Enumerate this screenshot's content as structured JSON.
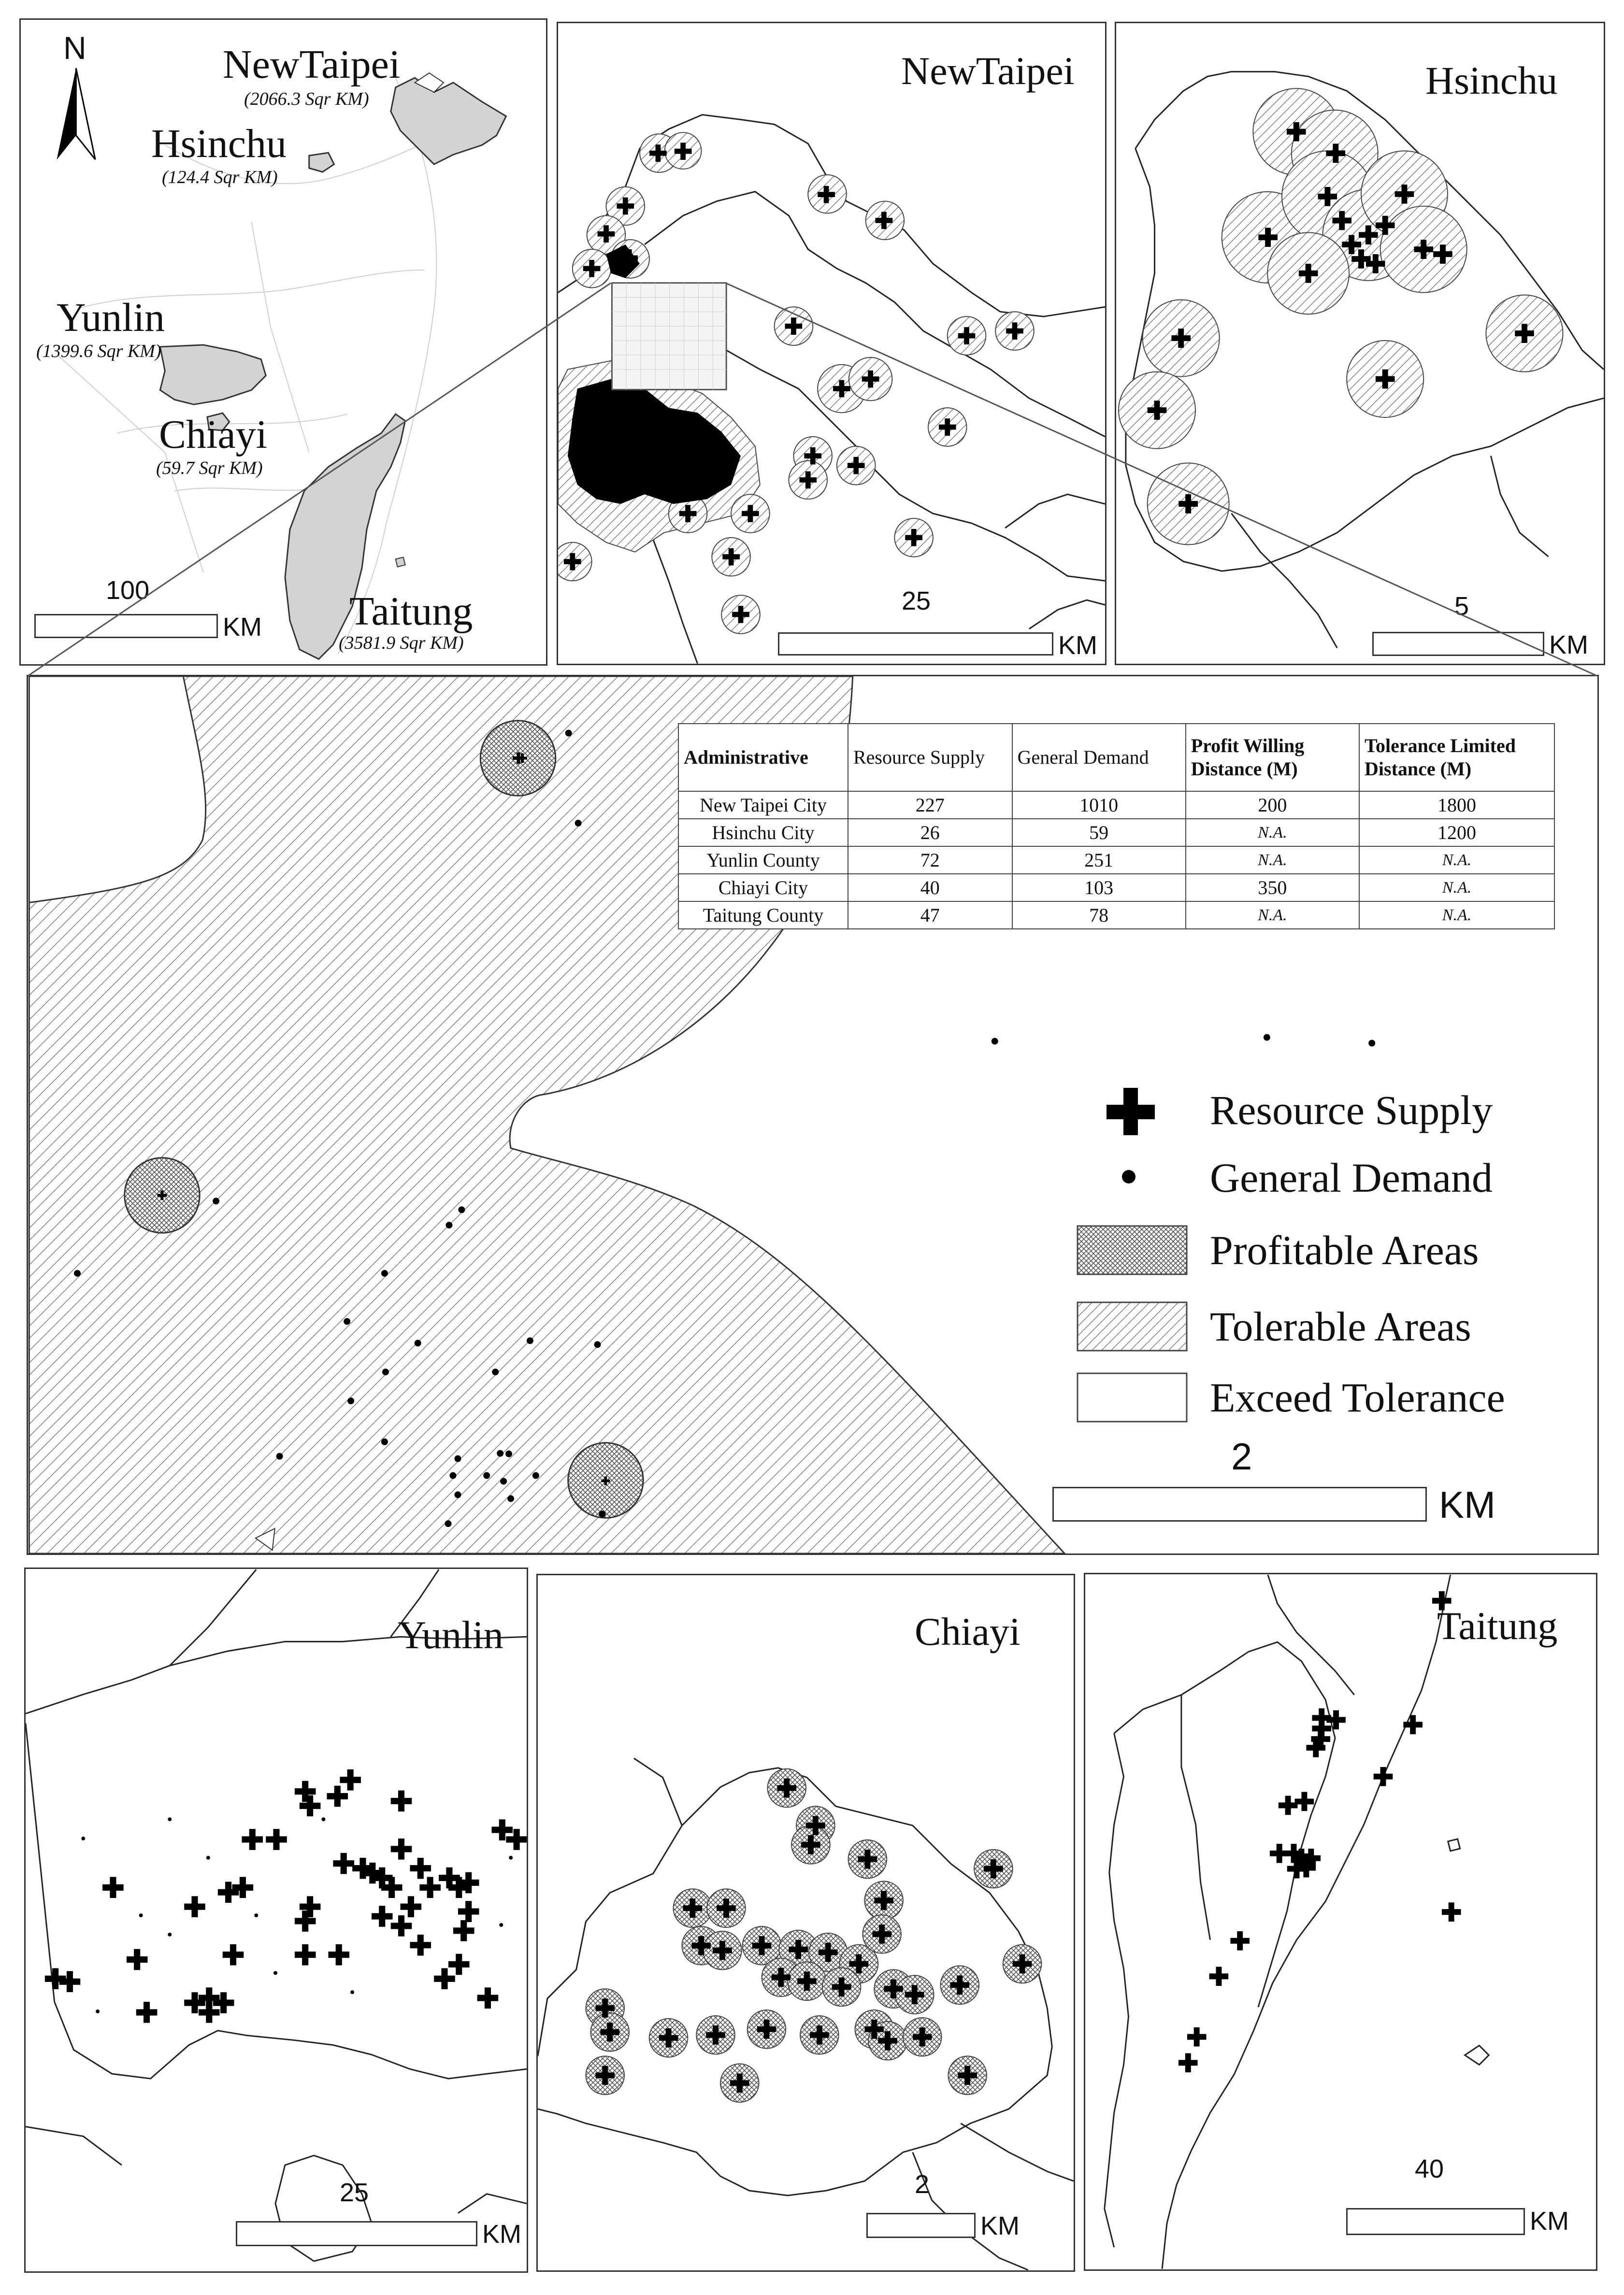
{
  "colors": {
    "land": "#d3d3d3",
    "border": "#333333",
    "hatch": "#555555",
    "background": "#ffffff"
  },
  "overview": {
    "north_label": "N",
    "icons": [
      "north-arrow-icon"
    ],
    "regions": [
      {
        "name": "NewTaipei",
        "area": "(2066.3 Sqr KM)"
      },
      {
        "name": "Hsinchu",
        "area": "(124.4 Sqr KM)"
      },
      {
        "name": "Yunlin",
        "area": "(1399.6 Sqr KM)"
      },
      {
        "name": "Chiayi",
        "area": "(59.7 Sqr KM)"
      },
      {
        "name": "Taitung",
        "area": "(3581.9 Sqr KM)"
      }
    ],
    "scale": {
      "value": "100",
      "unit": "KM"
    }
  },
  "panels": {
    "newtaipei": {
      "title": "NewTaipei",
      "scale": {
        "value": "25",
        "unit": "KM"
      }
    },
    "hsinchu": {
      "title": "Hsinchu",
      "scale": {
        "value": "5",
        "unit": "KM"
      }
    },
    "zoom": {
      "scale": {
        "value": "2",
        "unit": "KM"
      }
    },
    "yunlin": {
      "title": "Yunlin",
      "scale": {
        "value": "25",
        "unit": "KM"
      }
    },
    "chiayi": {
      "title": "Chiayi",
      "scale": {
        "value": "2",
        "unit": "KM"
      }
    },
    "taitung": {
      "title": "Taitung",
      "scale": {
        "value": "40",
        "unit": "KM"
      }
    }
  },
  "table": {
    "headers": [
      "Administrative",
      "Resource Supply",
      "General Demand",
      "Profit Willing Distance (M)",
      "Tolerance Limited Distance (M)"
    ],
    "rows": [
      [
        "New Taipei City",
        "227",
        "1010",
        "200",
        "1800"
      ],
      [
        "Hsinchu City",
        "26",
        "59",
        "N.A.",
        "1200"
      ],
      [
        "Yunlin County",
        "72",
        "251",
        "N.A.",
        "N.A."
      ],
      [
        "Chiayi City",
        "40",
        "103",
        "350",
        "N.A."
      ],
      [
        "Taitung County",
        "47",
        "78",
        "N.A.",
        "N.A."
      ]
    ]
  },
  "legend": [
    {
      "label": "Resource Supply",
      "icon": "resource-supply-cross-icon"
    },
    {
      "label": "General Demand",
      "icon": "general-demand-dot-icon"
    },
    {
      "label": "Profitable Areas",
      "icon": "crosshatch-swatch-icon"
    },
    {
      "label": "Tolerable Areas",
      "icon": "diagonal-hatch-swatch-icon"
    },
    {
      "label": "Exceed Tolerance",
      "icon": "blank-swatch-icon"
    }
  ]
}
